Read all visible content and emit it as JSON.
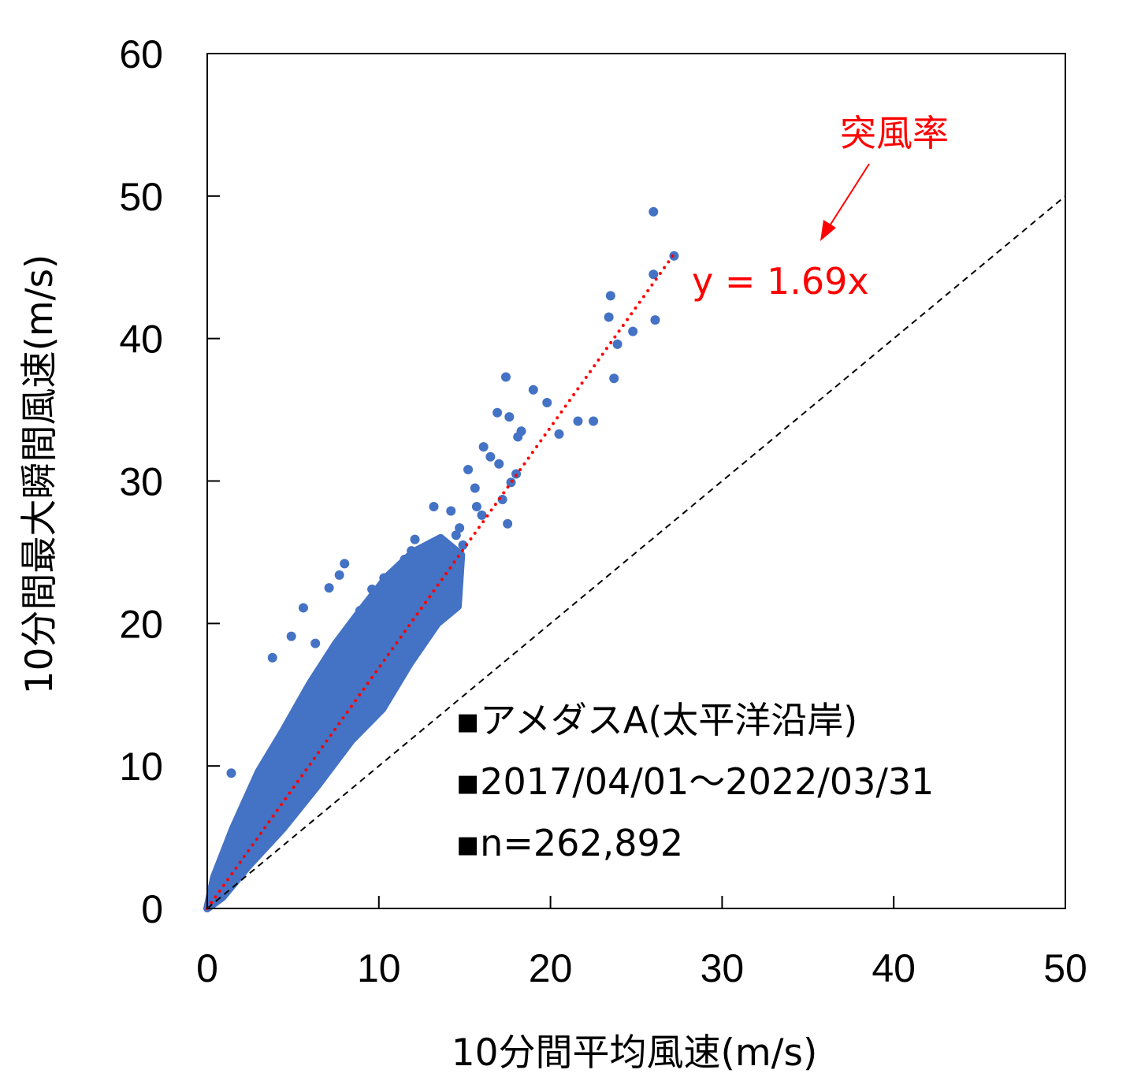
{
  "chart_data": {
    "type": "scatter",
    "title": "",
    "xlabel": "10分間平均風速(m/s)",
    "ylabel": "10分間最大瞬間風速(m/s)",
    "xlim": [
      0,
      50
    ],
    "ylim": [
      0,
      60
    ],
    "x_ticks": [
      0,
      10,
      20,
      30,
      40,
      50
    ],
    "y_ticks": [
      0,
      10,
      20,
      30,
      40,
      50,
      60
    ],
    "grid": false,
    "legend": "none",
    "point_color": "#4472C4",
    "fit_color": "#FF0000",
    "series": [
      {
        "kind": "scatter",
        "x": [
          26.0,
          27.2,
          26.0,
          23.5,
          23.4,
          26.1,
          24.8,
          23.9,
          23.7,
          17.4,
          19.0,
          19.8,
          21.6,
          22.5,
          20.5,
          16.9,
          17.6,
          18.3,
          18.1,
          16.1,
          16.5,
          17.0,
          15.2,
          15.6,
          18.0,
          17.7,
          17.2,
          15.7,
          16.0,
          17.5,
          14.7,
          14.2,
          13.2,
          12.1,
          8.0,
          7.7,
          7.1,
          5.6,
          4.9,
          3.8,
          1.4,
          11.5,
          12.5,
          13.4,
          10.3,
          9.6,
          8.9,
          13.8,
          12.9,
          6.3,
          14.9,
          14.5,
          11.9
        ],
        "y": [
          48.9,
          45.8,
          44.5,
          43.0,
          41.5,
          41.3,
          40.5,
          39.6,
          37.2,
          37.3,
          36.4,
          35.5,
          34.2,
          34.2,
          33.3,
          34.8,
          34.5,
          33.5,
          33.1,
          32.4,
          31.7,
          31.2,
          30.8,
          29.5,
          30.5,
          29.9,
          28.7,
          28.2,
          27.6,
          27.0,
          26.7,
          27.9,
          28.2,
          25.9,
          24.2,
          23.4,
          22.5,
          21.1,
          19.1,
          17.6,
          9.5,
          24.5,
          24.9,
          23.4,
          23.2,
          22.4,
          20.9,
          21.7,
          21.5,
          18.6,
          25.5,
          26.2,
          25.1
        ]
      },
      {
        "kind": "reference_line",
        "x": [
          0,
          50
        ],
        "y": [
          0,
          50
        ]
      },
      {
        "kind": "regression",
        "slope": 1.69,
        "x": [
          0,
          27.3
        ],
        "y": [
          0,
          46.1
        ]
      }
    ],
    "annotations": {
      "fit_label": "突風率",
      "equation": "y = 1.69x",
      "notes": [
        "▪アメダスA(太平洋沿岸)",
        "▪2017/04/01～2022/03/31",
        "▪n=262,892"
      ]
    }
  }
}
